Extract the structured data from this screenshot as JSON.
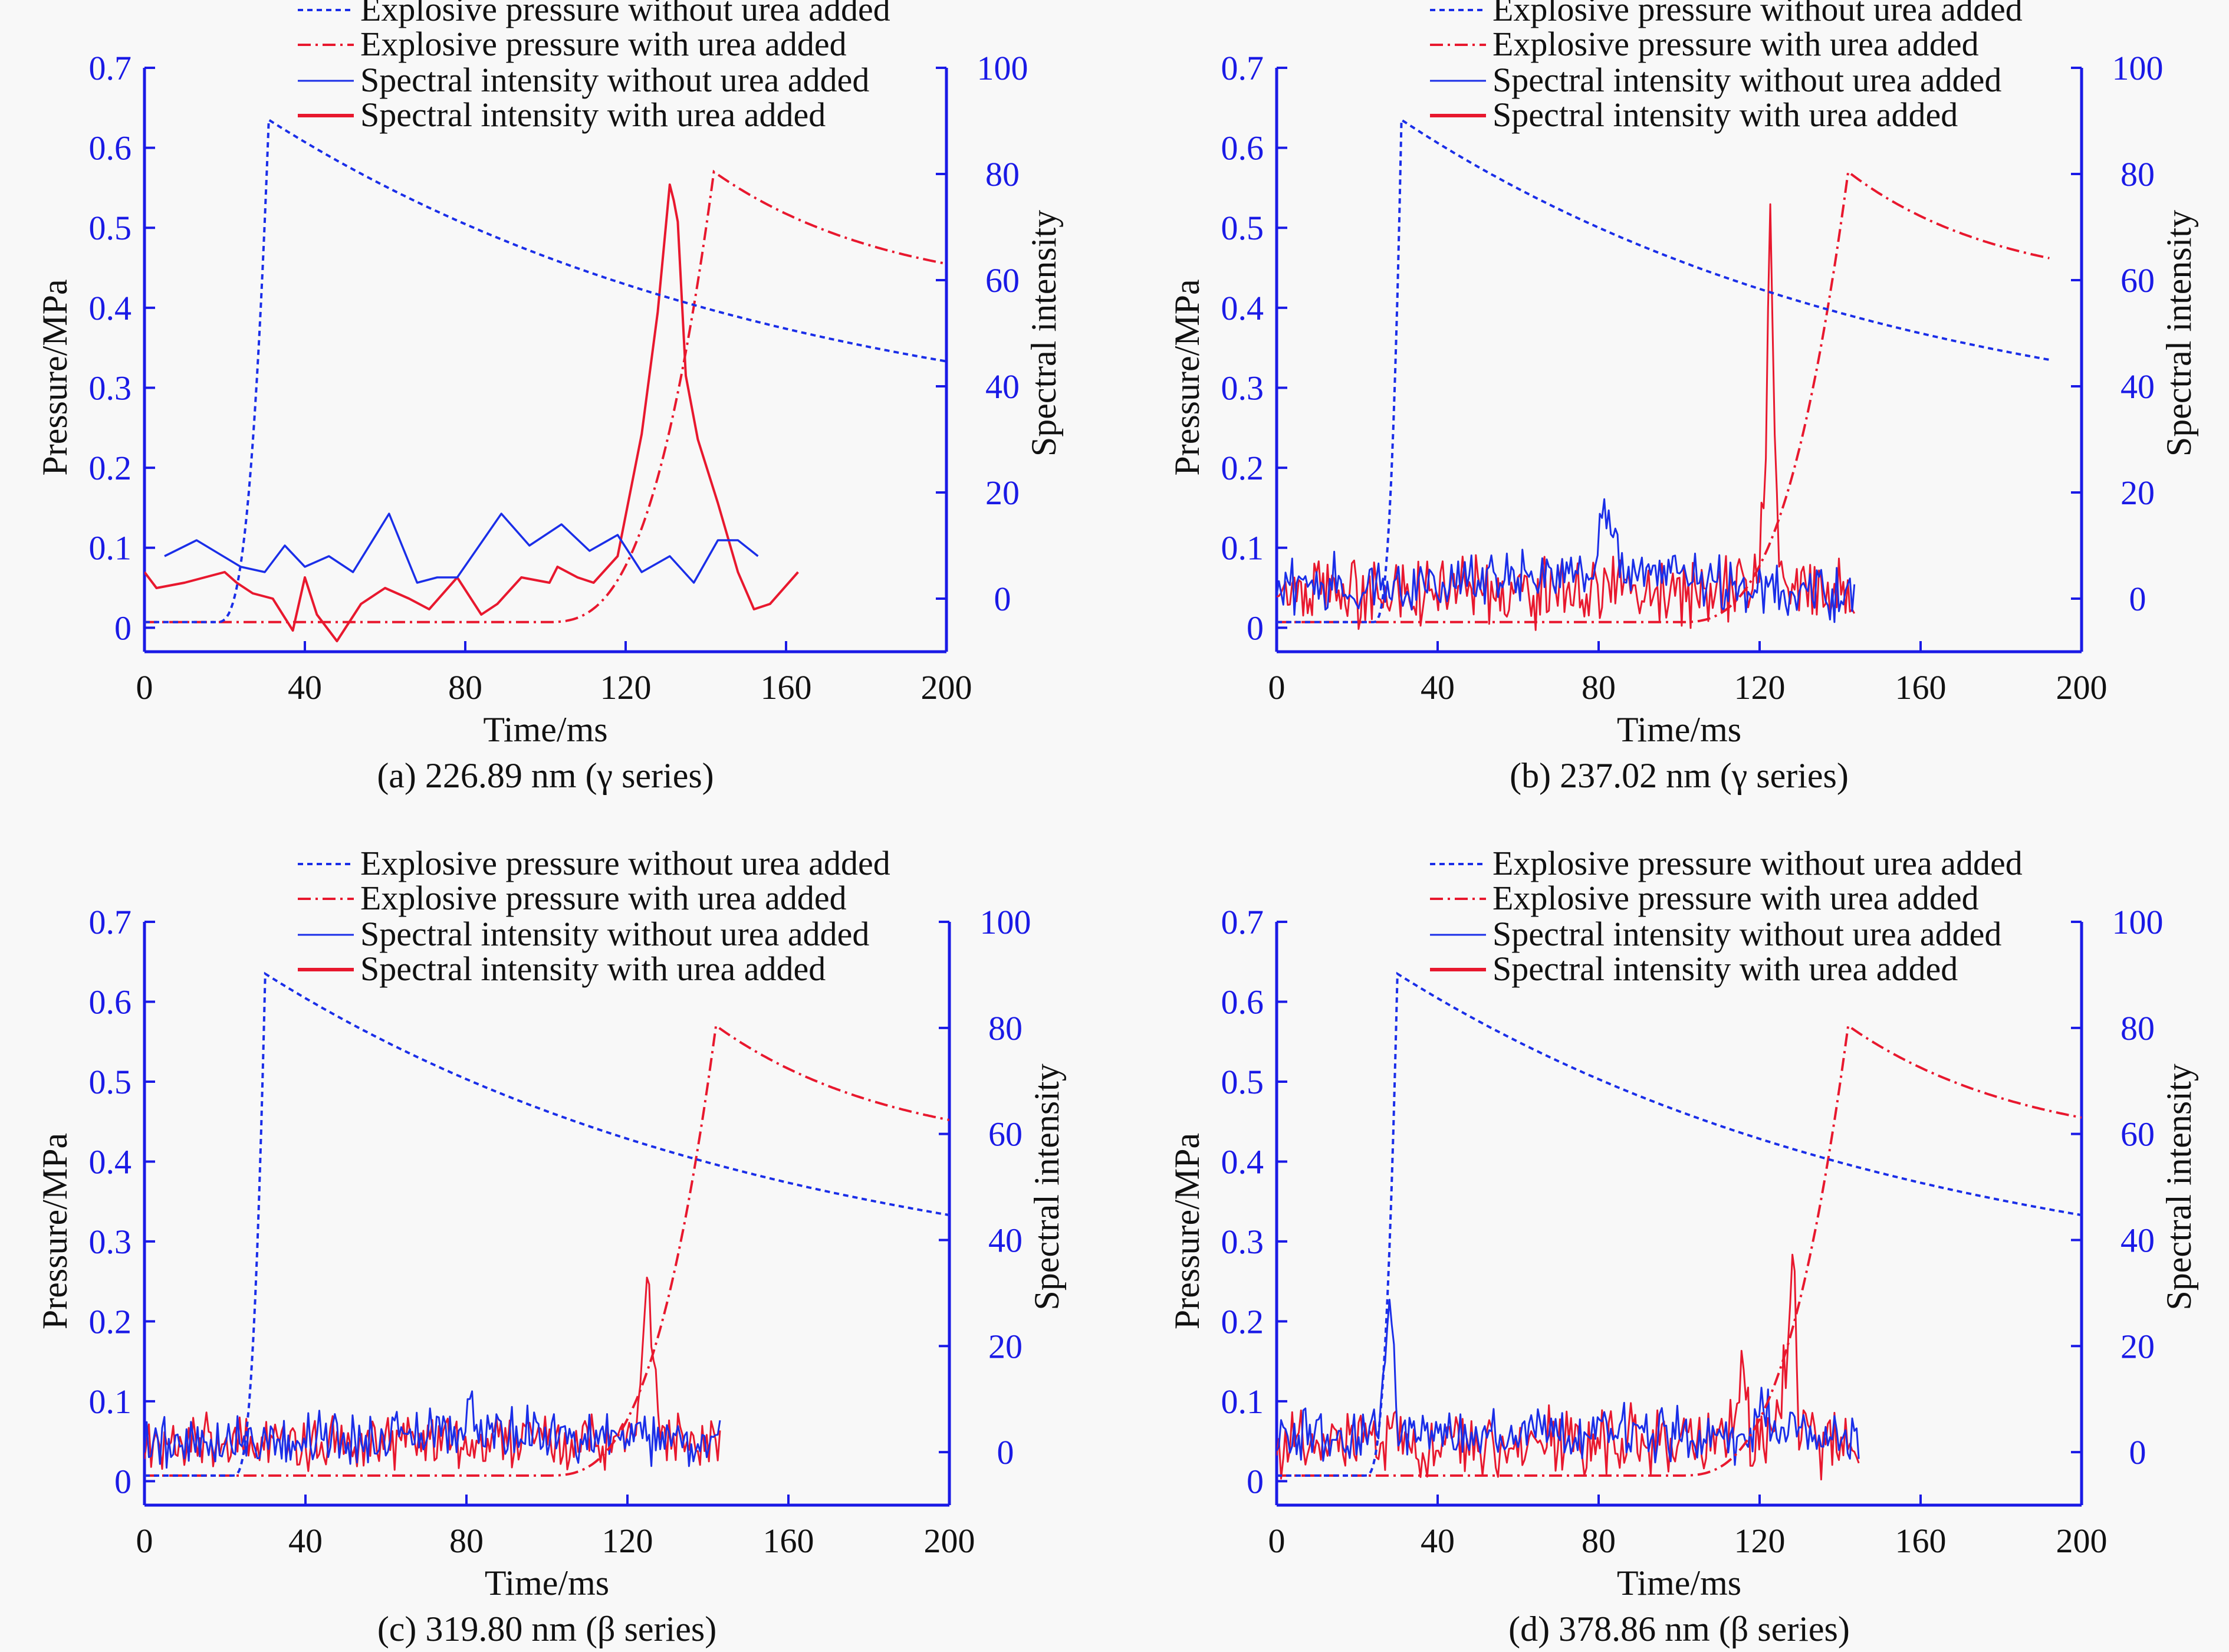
{
  "figure": {
    "background": "#f8f8f8",
    "left_axis_color": "#1a1ae6",
    "right_axis_color": "#1a1ae6"
  },
  "legend_entries": [
    {
      "label": "Explosive pressure without urea added",
      "color": "#1a2ee8",
      "style": "dotted"
    },
    {
      "label": "Explosive pressure with urea added",
      "color": "#e8182e",
      "style": "dashdot"
    },
    {
      "label": "Spectral intensity without urea added",
      "color": "#1a2ee8",
      "style": "solid-thin"
    },
    {
      "label": "Spectral intensity with urea added",
      "color": "#e8182e",
      "style": "solid-thick"
    }
  ],
  "chart_data": [
    {
      "type": "line",
      "caption": "(a) 226.89 nm (γ series)",
      "xlabel": "Time/ms",
      "ylabel": "Pressure/MPa",
      "y2label": "Spectral intensity",
      "xlim": [
        0,
        200
      ],
      "ylim": [
        -0.03,
        0.7
      ],
      "y2lim": [
        -10,
        100
      ],
      "xticks": [
        0,
        40,
        80,
        120,
        160,
        200
      ],
      "yticks": [
        0,
        0.1,
        0.2,
        0.3,
        0.4,
        0.5,
        0.6,
        0.7
      ],
      "y2ticks": [
        0,
        20,
        40,
        60,
        80,
        100
      ],
      "pressure_without": {
        "rise_start": 18,
        "peak_t": 31,
        "peak": 0.635,
        "end_t": 200,
        "end": 0.333
      },
      "pressure_with": {
        "rise_start": 100,
        "peak_t": 142,
        "peak": 0.57,
        "end_t": 200,
        "end": 0.455
      },
      "intensity_without": {
        "x": [
          5,
          13,
          24,
          30,
          35,
          40,
          46,
          52,
          61,
          68,
          73,
          78,
          89,
          96,
          104,
          111,
          118,
          124,
          131,
          137,
          143,
          148,
          153
        ],
        "y": [
          8,
          11,
          6,
          5,
          10,
          6,
          8,
          5,
          16,
          3,
          4,
          4,
          16,
          10,
          14,
          9,
          12,
          5,
          8,
          3,
          11,
          11,
          8
        ]
      },
      "intensity_with": {
        "x": [
          0,
          3,
          10,
          20,
          23,
          27,
          32,
          37,
          40,
          43,
          48,
          54,
          60,
          66,
          71,
          78,
          84,
          88,
          94,
          101,
          103,
          108,
          112,
          118,
          124,
          128,
          131,
          132,
          133,
          135,
          138,
          143,
          148,
          152,
          156,
          163
        ],
        "y": [
          5,
          2,
          3,
          5,
          3,
          1,
          0,
          -6,
          4,
          -3,
          -8,
          -1,
          2,
          0,
          -2,
          4,
          -3,
          -1,
          4,
          3,
          6,
          4,
          3,
          8,
          31,
          54,
          78,
          75,
          71,
          42,
          30,
          18,
          5,
          -2,
          -1,
          5
        ]
      },
      "noise": false
    },
    {
      "type": "line",
      "caption": "(b) 237.02 nm (γ series)",
      "xlabel": "Time/ms",
      "ylabel": "Pressure/MPa",
      "y2label": "Spectral intensity",
      "xlim": [
        0,
        200
      ],
      "ylim": [
        -0.03,
        0.7
      ],
      "y2lim": [
        -10,
        100
      ],
      "xticks": [
        0,
        40,
        80,
        120,
        160,
        200
      ],
      "yticks": [
        0,
        0.1,
        0.2,
        0.3,
        0.4,
        0.5,
        0.6,
        0.7
      ],
      "y2ticks": [
        0,
        20,
        40,
        60,
        80,
        100
      ],
      "pressure_without": {
        "rise_start": 24,
        "peak_t": 31,
        "peak": 0.635,
        "end_t": 192,
        "end": 0.335
      },
      "pressure_with": {
        "rise_start": 100,
        "peak_t": 142,
        "peak": 0.57,
        "end_t": 192,
        "end": 0.462
      },
      "intensity_without": {
        "x": [
          0,
          14,
          14.5,
          15,
          40,
          78,
          82,
          86,
          114,
          144
        ],
        "y": [
          2,
          3,
          12,
          2,
          3,
          5,
          16,
          6,
          2,
          1
        ]
      },
      "intensity_with": {
        "x": [
          0,
          110,
          116,
          120,
          121.5,
          122.5,
          123.5,
          125,
          144
        ],
        "y": [
          1,
          1,
          3,
          8,
          28,
          78,
          40,
          3,
          1
        ]
      },
      "noise": true,
      "noise_amp": [
        4,
        5
      ],
      "noise_end": [
        144,
        144
      ]
    },
    {
      "type": "line",
      "caption": "(c) 319.80 nm (β series)",
      "xlabel": "Time/ms",
      "ylabel": "Pressure/MPa",
      "y2label": "Spectral intensity",
      "xlim": [
        0,
        200
      ],
      "ylim": [
        -0.03,
        0.7
      ],
      "y2lim": [
        -10,
        100
      ],
      "xticks": [
        0,
        40,
        80,
        120,
        160,
        200
      ],
      "yticks": [
        0,
        0.1,
        0.2,
        0.3,
        0.4,
        0.5,
        0.6,
        0.7
      ],
      "y2ticks": [
        0,
        20,
        40,
        60,
        80,
        100
      ],
      "pressure_without": {
        "rise_start": 22,
        "peak_t": 30,
        "peak": 0.635,
        "end_t": 200,
        "end": 0.333
      },
      "pressure_with": {
        "rise_start": 100,
        "peak_t": 142,
        "peak": 0.57,
        "end_t": 200,
        "end": 0.452
      },
      "intensity_without": {
        "x": [
          0,
          78,
          81,
          84,
          143
        ],
        "y": [
          2,
          3,
          10,
          4,
          2
        ]
      },
      "intensity_with": {
        "x": [
          0,
          122,
          124,
          125,
          126,
          128,
          143
        ],
        "y": [
          2,
          2,
          18,
          38,
          22,
          3,
          2
        ]
      },
      "noise": true,
      "noise_amp": [
        4,
        4
      ],
      "noise_end": [
        143,
        143
      ]
    },
    {
      "type": "line",
      "caption": "(d) 378.86 nm (β series)",
      "xlabel": "Time/ms",
      "ylabel": "Pressure/MPa",
      "y2label": "Spectral intensity",
      "xlim": [
        0,
        200
      ],
      "ylim": [
        -0.03,
        0.7
      ],
      "y2lim": [
        -10,
        100
      ],
      "xticks": [
        0,
        40,
        80,
        120,
        160,
        200
      ],
      "yticks": [
        0,
        0.1,
        0.2,
        0.3,
        0.4,
        0.5,
        0.6,
        0.7
      ],
      "y2ticks": [
        0,
        20,
        40,
        60,
        80,
        100
      ],
      "pressure_without": {
        "rise_start": 22,
        "peak_t": 30,
        "peak": 0.635,
        "end_t": 200,
        "end": 0.333
      },
      "pressure_with": {
        "rise_start": 100,
        "peak_t": 142,
        "peak": 0.57,
        "end_t": 200,
        "end": 0.455
      },
      "intensity_without": {
        "x": [
          0,
          25,
          27,
          28.5,
          30,
          118,
          121,
          124,
          145
        ],
        "y": [
          3,
          3,
          15,
          30,
          4,
          3,
          10,
          3,
          3
        ]
      },
      "intensity_with": {
        "x": [
          0,
          112,
          116,
          118,
          124,
          127,
          128.5,
          130,
          145
        ],
        "y": [
          2,
          2,
          17,
          2,
          2,
          20,
          38,
          2,
          2
        ]
      },
      "noise": true,
      "noise_amp": [
        4,
        5
      ],
      "noise_end": [
        145,
        145
      ]
    }
  ]
}
